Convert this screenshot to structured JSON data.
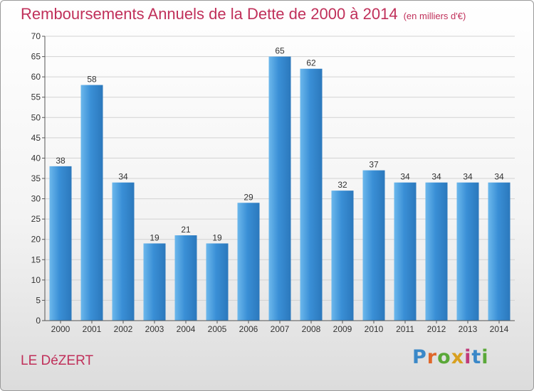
{
  "title": "Remboursements Annuels de la Dette de 2000 à 2014",
  "subtitle": "(en milliers d'€)",
  "place": "LE DéZERT",
  "brand": {
    "letters": [
      "P",
      "r",
      "o",
      "x",
      "i",
      "t",
      "i"
    ],
    "colors": [
      "#3a88c8",
      "#e0672a",
      "#5aa838",
      "#d8a020",
      "#c03a7a",
      "#3a88c8",
      "#5aa838"
    ]
  },
  "colors": {
    "bar": "#3a8fd6",
    "bar_light": "#6cb8ec",
    "bar_dark": "#2b78bc",
    "title": "#c0305a"
  },
  "chart_data": {
    "type": "bar",
    "categories": [
      "2000",
      "2001",
      "2002",
      "2003",
      "2004",
      "2005",
      "2006",
      "2007",
      "2008",
      "2009",
      "2010",
      "2011",
      "2012",
      "2013",
      "2014"
    ],
    "values": [
      38,
      58,
      34,
      19,
      21,
      19,
      29,
      65,
      62,
      32,
      37,
      34,
      34,
      34,
      34
    ],
    "ylim": [
      0,
      70
    ],
    "yticks": [
      0,
      5,
      10,
      15,
      20,
      25,
      30,
      35,
      40,
      45,
      50,
      55,
      60,
      65,
      70
    ],
    "grid": true
  }
}
